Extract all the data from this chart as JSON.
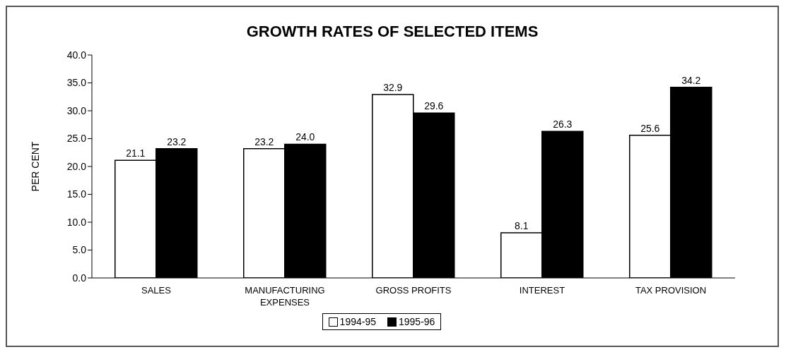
{
  "chart_data": {
    "type": "bar",
    "title": "GROWTH RATES OF SELECTED ITEMS",
    "ylabel": "PER CENT",
    "categories": [
      "SALES",
      "MANUFACTURING EXPENSES",
      "GROSS PROFITS",
      "INTEREST",
      "TAX PROVISION"
    ],
    "series": [
      {
        "name": "1994-95",
        "color": "#ffffff",
        "values": [
          21.1,
          23.2,
          32.9,
          8.1,
          25.6
        ],
        "value_labels": [
          "21.1",
          "23.2",
          "32.9",
          "8.1",
          "25.6"
        ]
      },
      {
        "name": "1995-96",
        "color": "#000000",
        "values": [
          23.2,
          24.0,
          29.6,
          26.3,
          34.2
        ],
        "value_labels": [
          "23.2",
          "24.0",
          "29.6",
          "26.3",
          "34.2"
        ]
      }
    ],
    "ylim": [
      0,
      40
    ],
    "yticks": [
      {
        "value": 0,
        "label": "0.0"
      },
      {
        "value": 5,
        "label": "5.0"
      },
      {
        "value": 10,
        "label": "10.0"
      },
      {
        "value": 15,
        "label": "15.0"
      },
      {
        "value": 20,
        "label": "20.0"
      },
      {
        "value": 25,
        "label": "25.0"
      },
      {
        "value": 30,
        "label": "30.0"
      },
      {
        "value": 35,
        "label": "35.0"
      },
      {
        "value": 40,
        "label": "40.0"
      }
    ],
    "grid": false,
    "legend": "bottom"
  }
}
